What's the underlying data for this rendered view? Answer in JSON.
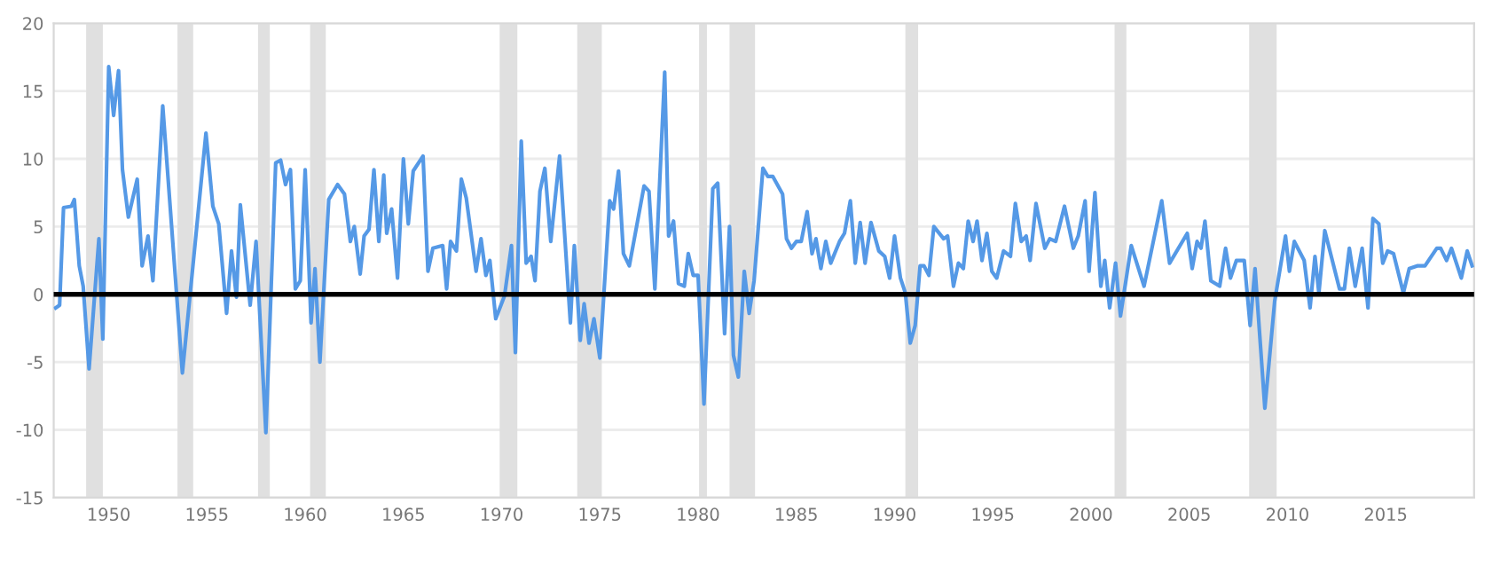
{
  "chart_data": {
    "type": "line",
    "xlim": [
      1947.2,
      2019.5
    ],
    "xticks": [
      1950,
      1955,
      1960,
      1965,
      1970,
      1975,
      1980,
      1985,
      1990,
      1995,
      2000,
      2005,
      2010,
      2015
    ],
    "ylim": [
      -15,
      20
    ],
    "yticks": [
      -15,
      -10,
      -5,
      0,
      5,
      10,
      15,
      20
    ],
    "grid": "y",
    "marker": "none",
    "line_style": "solid",
    "series": [
      {
        "color": "#5599e6",
        "x": [
          1947.3,
          1947.5,
          1947.7,
          1948.1,
          1948.25,
          1948.5,
          1948.7,
          1949.0,
          1949.5,
          1949.7,
          1950.0,
          1950.25,
          1950.5,
          1950.7,
          1951.0,
          1951.45,
          1951.7,
          1952.0,
          1952.25,
          1952.75,
          1953.75,
          1954.95,
          1955.3,
          1955.6,
          1956.0,
          1956.25,
          1956.5,
          1956.7,
          1957.2,
          1957.5,
          1958.0,
          1958.5,
          1958.75,
          1959.0,
          1959.25,
          1959.5,
          1959.75,
          1960.0,
          1960.3,
          1960.5,
          1960.75,
          1961.2,
          1961.65,
          1962.0,
          1962.3,
          1962.5,
          1962.8,
          1963.0,
          1963.25,
          1963.5,
          1963.75,
          1964.0,
          1964.15,
          1964.4,
          1964.7,
          1965.0,
          1965.25,
          1965.5,
          1966.0,
          1966.25,
          1966.5,
          1967.0,
          1967.2,
          1967.4,
          1967.7,
          1967.95,
          1968.2,
          1968.7,
          1968.95,
          1969.2,
          1969.4,
          1969.7,
          1970.15,
          1970.5,
          1970.7,
          1971.0,
          1971.25,
          1971.5,
          1971.7,
          1971.95,
          1972.2,
          1972.5,
          1972.95,
          1973.5,
          1973.7,
          1974.0,
          1974.2,
          1974.45,
          1974.7,
          1975.0,
          1975.5,
          1975.7,
          1975.95,
          1976.2,
          1976.5,
          1977.25,
          1977.5,
          1977.8,
          1978.3,
          1978.5,
          1978.75,
          1979.0,
          1979.3,
          1979.5,
          1979.75,
          1980.0,
          1980.3,
          1980.75,
          1981.0,
          1981.35,
          1981.6,
          1981.8,
          1982.05,
          1982.35,
          1982.6,
          1982.85,
          1983.3,
          1983.55,
          1983.8,
          1984.3,
          1984.5,
          1984.75,
          1985.0,
          1985.25,
          1985.55,
          1985.8,
          1986.0,
          1986.25,
          1986.5,
          1986.75,
          1987.2,
          1987.45,
          1987.75,
          1988.0,
          1988.25,
          1988.5,
          1988.8,
          1989.2,
          1989.5,
          1989.75,
          1990.0,
          1990.3,
          1990.55,
          1990.8,
          1991.05,
          1991.3,
          1991.5,
          1991.75,
          1992.0,
          1992.5,
          1992.7,
          1993.0,
          1993.25,
          1993.5,
          1993.75,
          1994.0,
          1994.2,
          1994.45,
          1994.7,
          1994.95,
          1995.2,
          1995.55,
          1995.9,
          1996.15,
          1996.45,
          1996.7,
          1996.9,
          1997.2,
          1997.65,
          1997.9,
          1998.2,
          1998.65,
          1999.1,
          1999.35,
          1999.7,
          1999.9,
          2000.2,
          2000.5,
          2000.7,
          2000.95,
          2001.25,
          2001.5,
          2002.05,
          2002.7,
          2003.6,
          2004.0,
          2004.9,
          2005.15,
          2005.4,
          2005.6,
          2005.8,
          2006.1,
          2006.55,
          2006.85,
          2007.1,
          2007.4,
          2007.8,
          2008.1,
          2008.35,
          2008.85,
          2009.35,
          2009.9,
          2010.1,
          2010.35,
          2010.85,
          2011.15,
          2011.4,
          2011.6,
          2011.9,
          2012.65,
          2012.9,
          2013.15,
          2013.45,
          2013.8,
          2014.1,
          2014.35,
          2014.65,
          2014.85,
          2015.1,
          2015.4,
          2015.9,
          2016.2,
          2016.6,
          2017.0,
          2017.6,
          2017.8,
          2018.1,
          2018.35,
          2018.85,
          2019.15,
          2019.4
        ],
        "values": [
          -1.0,
          -0.8,
          6.4,
          6.5,
          7.0,
          2.1,
          0.6,
          -5.5,
          4.1,
          -3.3,
          16.8,
          13.2,
          16.5,
          9.2,
          5.7,
          8.5,
          2.1,
          4.3,
          1.0,
          13.9,
          -5.8,
          11.9,
          6.5,
          5.2,
          -1.4,
          3.2,
          -0.2,
          6.6,
          -0.8,
          3.9,
          -10.2,
          9.7,
          9.9,
          8.1,
          9.2,
          0.4,
          1.0,
          9.2,
          -2.1,
          1.9,
          -5.0,
          7.0,
          8.1,
          7.4,
          3.9,
          5.0,
          1.5,
          4.3,
          4.8,
          9.2,
          3.9,
          8.8,
          4.5,
          6.3,
          1.2,
          10.0,
          5.2,
          9.1,
          10.2,
          1.7,
          3.4,
          3.6,
          0.4,
          3.9,
          3.2,
          8.5,
          7.1,
          1.7,
          4.1,
          1.4,
          2.5,
          -1.8,
          -0.1,
          3.6,
          -4.3,
          11.3,
          2.3,
          2.8,
          1.0,
          7.6,
          9.3,
          3.9,
          10.2,
          -2.1,
          3.6,
          -3.4,
          -0.7,
          -3.6,
          -1.8,
          -4.7,
          6.9,
          6.3,
          9.1,
          3.0,
          2.1,
          8.0,
          7.6,
          0.4,
          16.4,
          4.3,
          5.4,
          0.8,
          0.6,
          3.0,
          1.4,
          1.4,
          -8.1,
          7.8,
          8.2,
          -2.9,
          5.0,
          -4.5,
          -6.1,
          1.7,
          -1.4,
          1.0,
          9.3,
          8.7,
          8.7,
          7.4,
          4.1,
          3.4,
          3.9,
          3.9,
          6.1,
          3.0,
          4.1,
          1.9,
          3.9,
          2.3,
          3.9,
          4.5,
          6.9,
          2.3,
          5.3,
          2.3,
          5.3,
          3.2,
          2.8,
          1.2,
          4.3,
          1.2,
          0.1,
          -3.6,
          -2.3,
          2.1,
          2.1,
          1.4,
          5.0,
          4.1,
          4.3,
          0.6,
          2.3,
          1.9,
          5.4,
          3.9,
          5.4,
          2.5,
          4.5,
          1.7,
          1.2,
          3.2,
          2.8,
          6.7,
          3.9,
          4.3,
          2.5,
          6.7,
          3.4,
          4.1,
          3.9,
          6.5,
          3.4,
          4.3,
          6.9,
          1.7,
          7.5,
          0.6,
          2.5,
          -1.0,
          2.3,
          -1.6,
          3.6,
          0.6,
          6.9,
          2.3,
          4.5,
          1.9,
          3.9,
          3.4,
          5.4,
          1.0,
          0.6,
          3.4,
          1.2,
          2.5,
          2.5,
          -2.3,
          1.9,
          -8.4,
          -0.5,
          4.3,
          1.7,
          3.9,
          2.5,
          -1.0,
          2.8,
          0.1,
          4.7,
          0.4,
          0.4,
          3.4,
          0.6,
          3.4,
          -1.0,
          5.6,
          5.2,
          2.3,
          3.2,
          3.0,
          0.1,
          1.9,
          2.1,
          2.1,
          3.4,
          3.4,
          2.5,
          3.4,
          1.2,
          3.2,
          2.1
        ]
      }
    ],
    "ref_lines": [
      {
        "axis": "y",
        "value": 0,
        "color": "#000000"
      }
    ],
    "bands": [
      {
        "axis": "x",
        "from": 1948.85,
        "to": 1949.7,
        "color": "#e0e0e0"
      },
      {
        "axis": "x",
        "from": 1953.5,
        "to": 1954.3,
        "color": "#e0e0e0"
      },
      {
        "axis": "x",
        "from": 1957.6,
        "to": 1958.2,
        "color": "#e0e0e0"
      },
      {
        "axis": "x",
        "from": 1960.25,
        "to": 1961.05,
        "color": "#e0e0e0"
      },
      {
        "axis": "x",
        "from": 1969.9,
        "to": 1970.8,
        "color": "#e0e0e0"
      },
      {
        "axis": "x",
        "from": 1973.85,
        "to": 1975.1,
        "color": "#e0e0e0"
      },
      {
        "axis": "x",
        "from": 1980.05,
        "to": 1980.45,
        "color": "#e0e0e0"
      },
      {
        "axis": "x",
        "from": 1981.6,
        "to": 1982.9,
        "color": "#e0e0e0"
      },
      {
        "axis": "x",
        "from": 1990.55,
        "to": 1991.2,
        "color": "#e0e0e0"
      },
      {
        "axis": "x",
        "from": 2001.2,
        "to": 2001.8,
        "color": "#e0e0e0"
      },
      {
        "axis": "x",
        "from": 2008.05,
        "to": 2009.45,
        "color": "#e0e0e0"
      }
    ]
  }
}
